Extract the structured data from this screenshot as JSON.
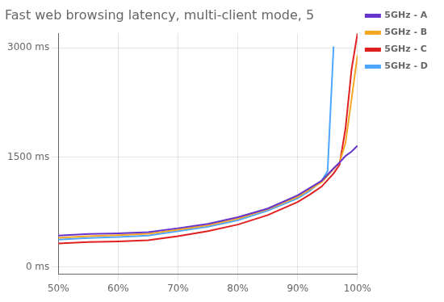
{
  "chart_data": {
    "type": "line",
    "title": "Fast web browsing latency, multi-client mode, 5",
    "xlim": [
      50,
      100
    ],
    "xticks": [
      {
        "value": 50,
        "label": "50%"
      },
      {
        "value": 60,
        "label": "60%"
      },
      {
        "value": 70,
        "label": "70%"
      },
      {
        "value": 80,
        "label": "80%"
      },
      {
        "value": 90,
        "label": "90%"
      },
      {
        "value": 100,
        "label": "100%"
      }
    ],
    "ylim": [
      -100,
      3200
    ],
    "yticks": [
      {
        "value": 0,
        "label": "0 ms"
      },
      {
        "value": 1500,
        "label": "1500 ms"
      },
      {
        "value": 3000,
        "label": "3000 ms"
      }
    ],
    "grid": true,
    "legend": "right",
    "series": [
      {
        "name": "5GHz - A",
        "color": "#6633cc",
        "x": [
          50,
          55,
          60,
          65,
          70,
          75,
          80,
          85,
          90,
          92,
          94,
          96,
          97,
          98,
          99,
          100
        ],
        "values": [
          430,
          450,
          460,
          475,
          530,
          590,
          680,
          800,
          980,
          1080,
          1180,
          1350,
          1430,
          1520,
          1580,
          1660
        ]
      },
      {
        "name": "5GHz - B",
        "color": "#f5a623",
        "x": [
          50,
          55,
          60,
          65,
          70,
          75,
          80,
          85,
          90,
          92,
          94,
          96,
          97,
          98,
          99,
          100
        ],
        "values": [
          400,
          420,
          435,
          455,
          510,
          570,
          660,
          790,
          960,
          1060,
          1160,
          1340,
          1430,
          1700,
          2300,
          2900
        ]
      },
      {
        "name": "5GHz - C",
        "color": "#e02020",
        "x": [
          50,
          55,
          60,
          65,
          70,
          75,
          80,
          85,
          90,
          92,
          94,
          96,
          97,
          98,
          99,
          100
        ],
        "values": [
          320,
          340,
          350,
          365,
          420,
          490,
          580,
          710,
          890,
          990,
          1100,
          1280,
          1400,
          1900,
          2700,
          3200
        ]
      },
      {
        "name": "5GHz - D",
        "color": "#4da6ff",
        "x": [
          50,
          55,
          60,
          65,
          70,
          75,
          80,
          85,
          90,
          92,
          94,
          95,
          96
        ],
        "values": [
          375,
          395,
          410,
          430,
          490,
          550,
          640,
          770,
          940,
          1040,
          1180,
          1310,
          3020
        ]
      }
    ]
  }
}
